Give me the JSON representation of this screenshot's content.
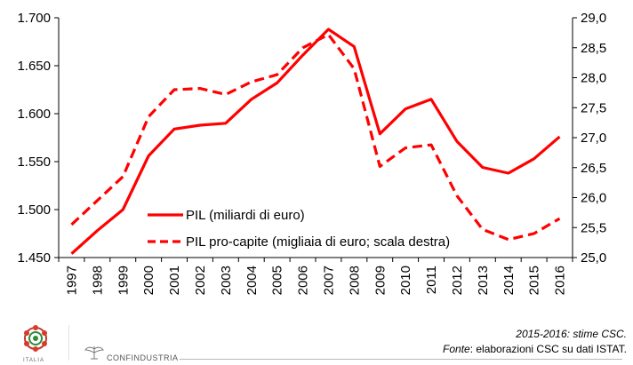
{
  "chart_data": {
    "type": "line",
    "categories": [
      "1997",
      "1998",
      "1999",
      "2000",
      "2001",
      "2002",
      "2003",
      "2004",
      "2005",
      "2006",
      "2007",
      "2008",
      "2009",
      "2010",
      "2011",
      "2012",
      "2013",
      "2014",
      "2015",
      "2016"
    ],
    "y_left": {
      "min": 1450,
      "max": 1700,
      "step": 50,
      "tick_labels": [
        "1.450",
        "1.500",
        "1.550",
        "1.600",
        "1.650",
        "1.700"
      ]
    },
    "y_right": {
      "min": 25.0,
      "max": 29.0,
      "step": 0.5,
      "tick_labels": [
        "25,0",
        "25,5",
        "26,0",
        "26,5",
        "27,0",
        "27,5",
        "28,0",
        "28,5",
        "29,0"
      ]
    },
    "series": [
      {
        "name": "PIL (miliardi di euro)",
        "axis": "left",
        "style": "solid",
        "color": "#ff0000",
        "values": [
          1454,
          1478,
          1500,
          1556,
          1584,
          1588,
          1590,
          1615,
          1632,
          1661,
          1688,
          1670,
          1579,
          1605,
          1615,
          1571,
          1544,
          1538,
          1553,
          1576
        ]
      },
      {
        "name": "PIL pro-capite (migliaia di euro; scala destra)",
        "axis": "right",
        "style": "dashed",
        "color": "#ff0000",
        "values": [
          25.55,
          25.95,
          26.35,
          27.35,
          27.8,
          27.82,
          27.72,
          27.93,
          28.05,
          28.5,
          28.72,
          28.15,
          26.52,
          26.83,
          26.88,
          26.03,
          25.47,
          25.3,
          25.4,
          25.65
        ]
      }
    ],
    "grid": false,
    "legend_position": "bottom-center"
  },
  "footer": {
    "note_line1": "2015-2016: stime CSC.",
    "note_source_label": "Fonte",
    "note_source_text": ": elaborazioni CSC su dati ISTAT.",
    "logo_left_text": "ITALIA",
    "logo_right_text": "CONFINDUSTRIA"
  }
}
